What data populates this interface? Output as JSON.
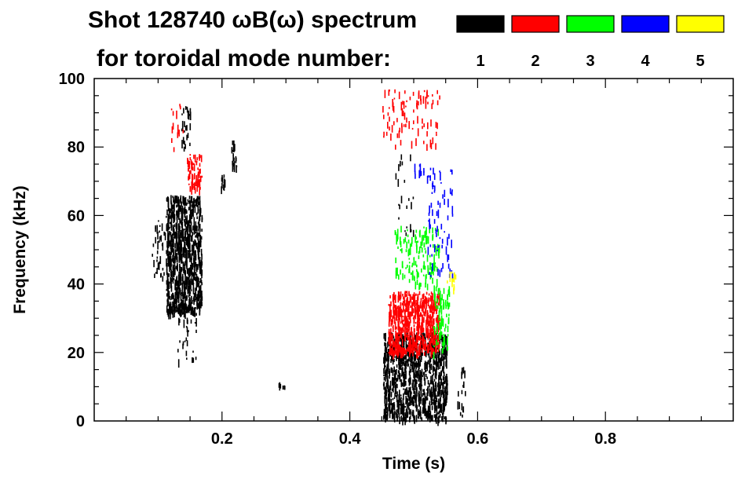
{
  "chart_data": {
    "type": "scatter",
    "title": "Shot 128740 ωB(ω) spectrum",
    "subtitle": "for toroidal mode number:",
    "xlabel": "Time (s)",
    "ylabel": "Frequency (kHz)",
    "xlim": [
      0.0,
      1.0
    ],
    "ylim": [
      0,
      100
    ],
    "x_ticks": [
      "0.2",
      "0.4",
      "0.6",
      "0.8"
    ],
    "x_tick_values": [
      0.2,
      0.4,
      0.6,
      0.8
    ],
    "y_ticks": [
      "0",
      "20",
      "40",
      "60",
      "80",
      "100"
    ],
    "y_tick_values": [
      0,
      20,
      40,
      60,
      80,
      100
    ],
    "grid": false,
    "legend_position": "top-right",
    "series": [
      {
        "name": "1",
        "color": "#000000",
        "regions": [
          {
            "t": [
              0.112,
              0.168
            ],
            "f": [
              32,
              66
            ],
            "density": 0.8
          },
          {
            "t": [
              0.09,
              0.12
            ],
            "f": [
              42,
              60
            ],
            "density": 0.15
          },
          {
            "t": [
              0.13,
              0.16
            ],
            "f": [
              18,
              36
            ],
            "density": 0.12
          },
          {
            "t": [
              0.135,
              0.15
            ],
            "f": [
              80,
              92
            ],
            "density": 0.25
          },
          {
            "t": [
              0.198,
              0.204
            ],
            "f": [
              68,
              72
            ],
            "density": 0.7
          },
          {
            "t": [
              0.214,
              0.222
            ],
            "f": [
              74,
              82
            ],
            "density": 0.6
          },
          {
            "t": [
              0.286,
              0.298
            ],
            "f": [
              10,
              12
            ],
            "density": 0.5
          },
          {
            "t": [
              0.452,
              0.552
            ],
            "f": [
              1,
              26
            ],
            "density": 0.7
          },
          {
            "t": [
              0.47,
              0.5
            ],
            "f": [
              55,
              80
            ],
            "density": 0.05
          },
          {
            "t": [
              0.568,
              0.58
            ],
            "f": [
              1,
              16
            ],
            "density": 0.15
          }
        ]
      },
      {
        "name": "2",
        "color": "#ff0000",
        "regions": [
          {
            "t": [
              0.145,
              0.168
            ],
            "f": [
              68,
              78
            ],
            "density": 0.5
          },
          {
            "t": [
              0.12,
              0.14
            ],
            "f": [
              78,
              94
            ],
            "density": 0.08
          },
          {
            "t": [
              0.46,
              0.54
            ],
            "f": [
              20,
              38
            ],
            "density": 0.75
          },
          {
            "t": [
              0.45,
              0.54
            ],
            "f": [
              80,
              97
            ],
            "density": 0.1
          }
        ]
      },
      {
        "name": "3",
        "color": "#00ff00",
        "regions": [
          {
            "t": [
              0.47,
              0.54
            ],
            "f": [
              40,
              57
            ],
            "density": 0.2
          },
          {
            "t": [
              0.53,
              0.555
            ],
            "f": [
              20,
              40
            ],
            "density": 0.3
          }
        ]
      },
      {
        "name": "4",
        "color": "#0000ff",
        "regions": [
          {
            "t": [
              0.52,
              0.56
            ],
            "f": [
              42,
              74
            ],
            "density": 0.1
          },
          {
            "t": [
              0.5,
              0.515
            ],
            "f": [
              72,
              76
            ],
            "density": 0.3
          }
        ]
      },
      {
        "name": "5",
        "color": "#ffff00",
        "regions": [
          {
            "t": [
              0.55,
              0.565
            ],
            "f": [
              38,
              44
            ],
            "density": 0.25
          }
        ]
      }
    ]
  },
  "legend": {
    "items": [
      {
        "label": "1",
        "color": "#000000"
      },
      {
        "label": "2",
        "color": "#ff0000"
      },
      {
        "label": "3",
        "color": "#00ff00"
      },
      {
        "label": "4",
        "color": "#0000ff"
      },
      {
        "label": "5",
        "color": "#ffff00"
      }
    ]
  }
}
